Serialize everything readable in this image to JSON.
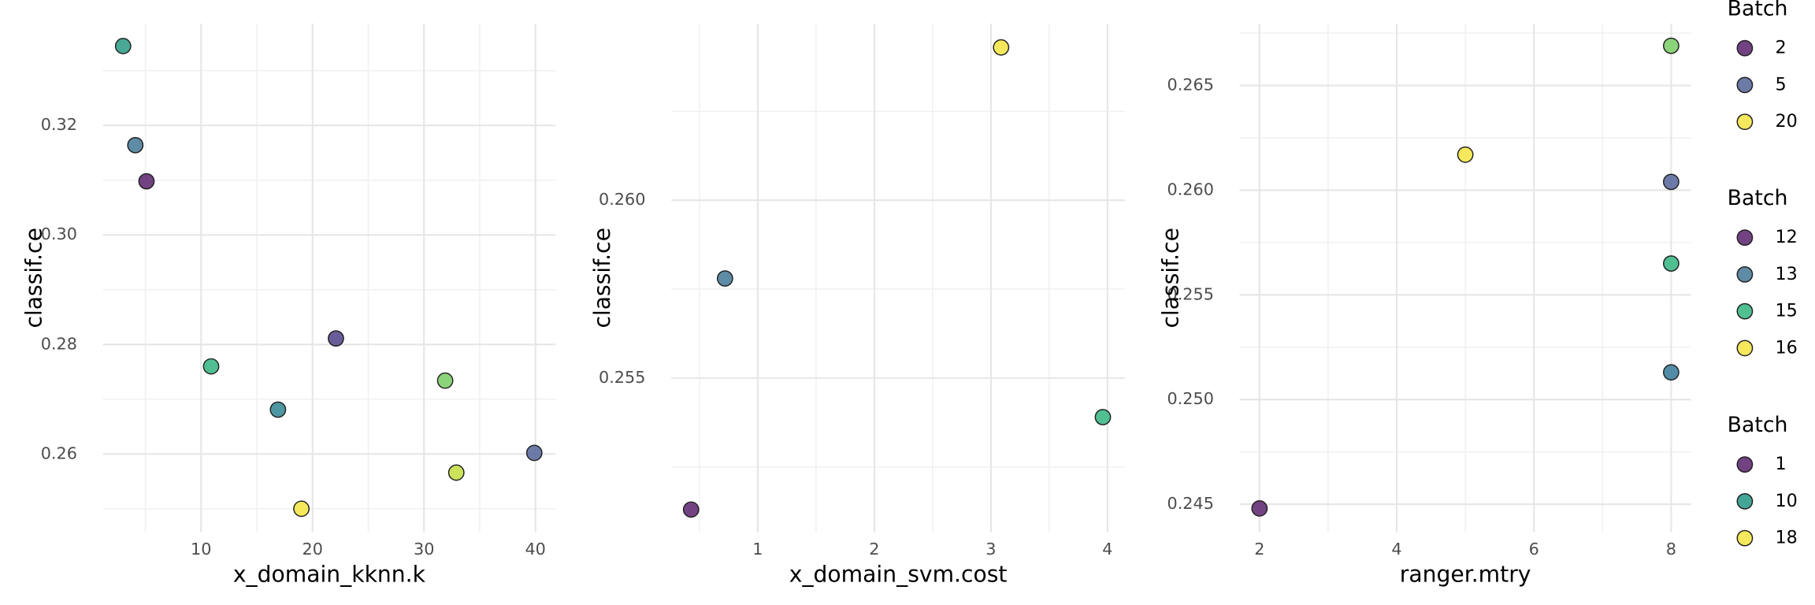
{
  "chart_data": [
    {
      "type": "scatter",
      "x_label": "x_domain_kknn.k",
      "y_label": "classif.ce",
      "x": [
        3,
        4.1,
        5.1,
        22.1,
        10.9,
        16.9,
        31.9,
        39.9,
        32.9,
        19
      ],
      "values": [
        0.3345,
        0.3164,
        0.3098,
        0.2811,
        0.276,
        0.2681,
        0.2734,
        0.2602,
        0.2566,
        0.25
      ],
      "colors": [
        "#34a08b",
        "#4d7e9c",
        "#632d74",
        "#5a4a8e",
        "#3db886",
        "#3a8c98",
        "#7fcf6a",
        "#5c6c9f",
        "#c5df49",
        "#f5e54a"
      ],
      "xlim": [
        1.19,
        41.8
      ],
      "ylim": [
        0.2457,
        0.3386
      ],
      "xticks": [
        10,
        20,
        30,
        40
      ],
      "yticks": [
        0.26,
        0.28,
        {
          "value": 0.3,
          "label": "0.30"
        },
        0.32
      ],
      "grid": true
    },
    {
      "type": "scatter",
      "x_label": "x_domain_svm.cost",
      "y_label": "classif.ce",
      "x": [
        0.428,
        0.719,
        3.087,
        3.96
      ],
      "values": [
        0.2513,
        0.2578,
        0.2643,
        0.2539
      ],
      "colors": [
        "#632d74",
        "#4d7e9c",
        "#f5e54a",
        "#3db886"
      ],
      "xlim": [
        0.258,
        4.15
      ],
      "ylim": [
        0.25066,
        0.26497
      ],
      "xticks": [
        1,
        2,
        3,
        4
      ],
      "yticks": [
        0.255,
        {
          "value": 0.26,
          "label": "0.260"
        }
      ],
      "grid": true
    },
    {
      "type": "scatter",
      "x_label": "ranger.mtry",
      "y_label": "classif.ce",
      "x": [
        8,
        5,
        8,
        8,
        8,
        2
      ],
      "values": [
        0.2669,
        0.2617,
        0.2604,
        0.2565,
        0.2513,
        0.2448
      ],
      "colors": [
        "#7fcf6a",
        "#f5e54a",
        "#5c6c9f",
        "#3db886",
        "#3f7f9c",
        "#632d74"
      ],
      "xlim": [
        1.71,
        8.29
      ],
      "ylim": [
        0.24366,
        0.26796
      ],
      "xticks": [
        2,
        4,
        6,
        8
      ],
      "yticks": [
        0.245,
        {
          "value": 0.25,
          "label": "0.250"
        },
        0.255,
        {
          "value": 0.26,
          "label": "0.260"
        },
        0.265
      ],
      "grid": true
    }
  ],
  "legends": [
    {
      "title": "Batch",
      "entries": [
        {
          "label": "2",
          "color": "#632d74"
        },
        {
          "label": "5",
          "color": "#5c6c9f"
        },
        {
          "label": "20",
          "color": "#f5e54a"
        }
      ]
    },
    {
      "title": "Batch",
      "entries": [
        {
          "label": "12",
          "color": "#632d74"
        },
        {
          "label": "13",
          "color": "#4d7e9c"
        },
        {
          "label": "15",
          "color": "#3db886"
        },
        {
          "label": "16",
          "color": "#f5e54a"
        }
      ]
    },
    {
      "title": "Batch",
      "entries": [
        {
          "label": "1",
          "color": "#632d74"
        },
        {
          "label": "10",
          "color": "#2f9c8c"
        },
        {
          "label": "18",
          "color": "#f5e54a"
        }
      ]
    }
  ]
}
